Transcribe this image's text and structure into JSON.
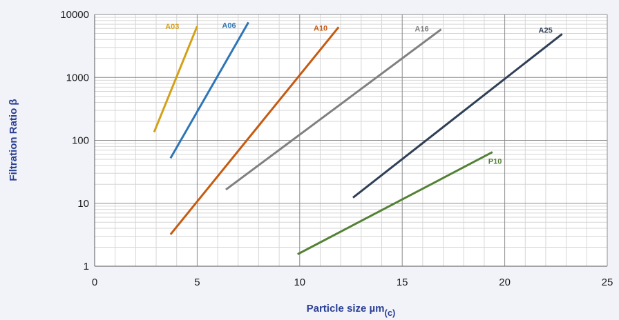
{
  "chart_data": {
    "type": "line",
    "title": "",
    "xlabel": "Particle size µm",
    "xlabel_subscript": "(c)",
    "ylabel": "Filtration Ratio β",
    "xlim": [
      0,
      25
    ],
    "ylim": [
      1,
      10000
    ],
    "yscale": "log",
    "x_ticks": [
      0,
      5,
      10,
      15,
      20,
      25
    ],
    "x_tick_labels": [
      "0",
      "5",
      "10",
      "15",
      "20",
      "25"
    ],
    "y_ticks": [
      1,
      10,
      100,
      1000,
      10000
    ],
    "y_tick_labels": [
      "1",
      "10",
      "100",
      "1000",
      "10000"
    ],
    "grid": true,
    "legend": "none",
    "series": [
      {
        "name": "A03",
        "color": "#d4a017",
        "x": [
          2.9,
          5.0
        ],
        "y": [
          135,
          6500
        ]
      },
      {
        "name": "A06",
        "color": "#2e75b6",
        "x": [
          3.7,
          7.5
        ],
        "y": [
          52,
          7500
        ]
      },
      {
        "name": "A10",
        "color": "#c55a11",
        "x": [
          3.7,
          11.9
        ],
        "y": [
          3.2,
          6300
        ]
      },
      {
        "name": "A16",
        "color": "#808080",
        "x": [
          6.4,
          16.9
        ],
        "y": [
          16.5,
          5800
        ]
      },
      {
        "name": "A25",
        "color": "#2f3f56",
        "x": [
          12.6,
          22.8
        ],
        "y": [
          12.3,
          4900
        ]
      },
      {
        "name": "P10",
        "color": "#538135",
        "x": [
          9.9,
          19.4
        ],
        "y": [
          1.55,
          65
        ]
      }
    ]
  }
}
